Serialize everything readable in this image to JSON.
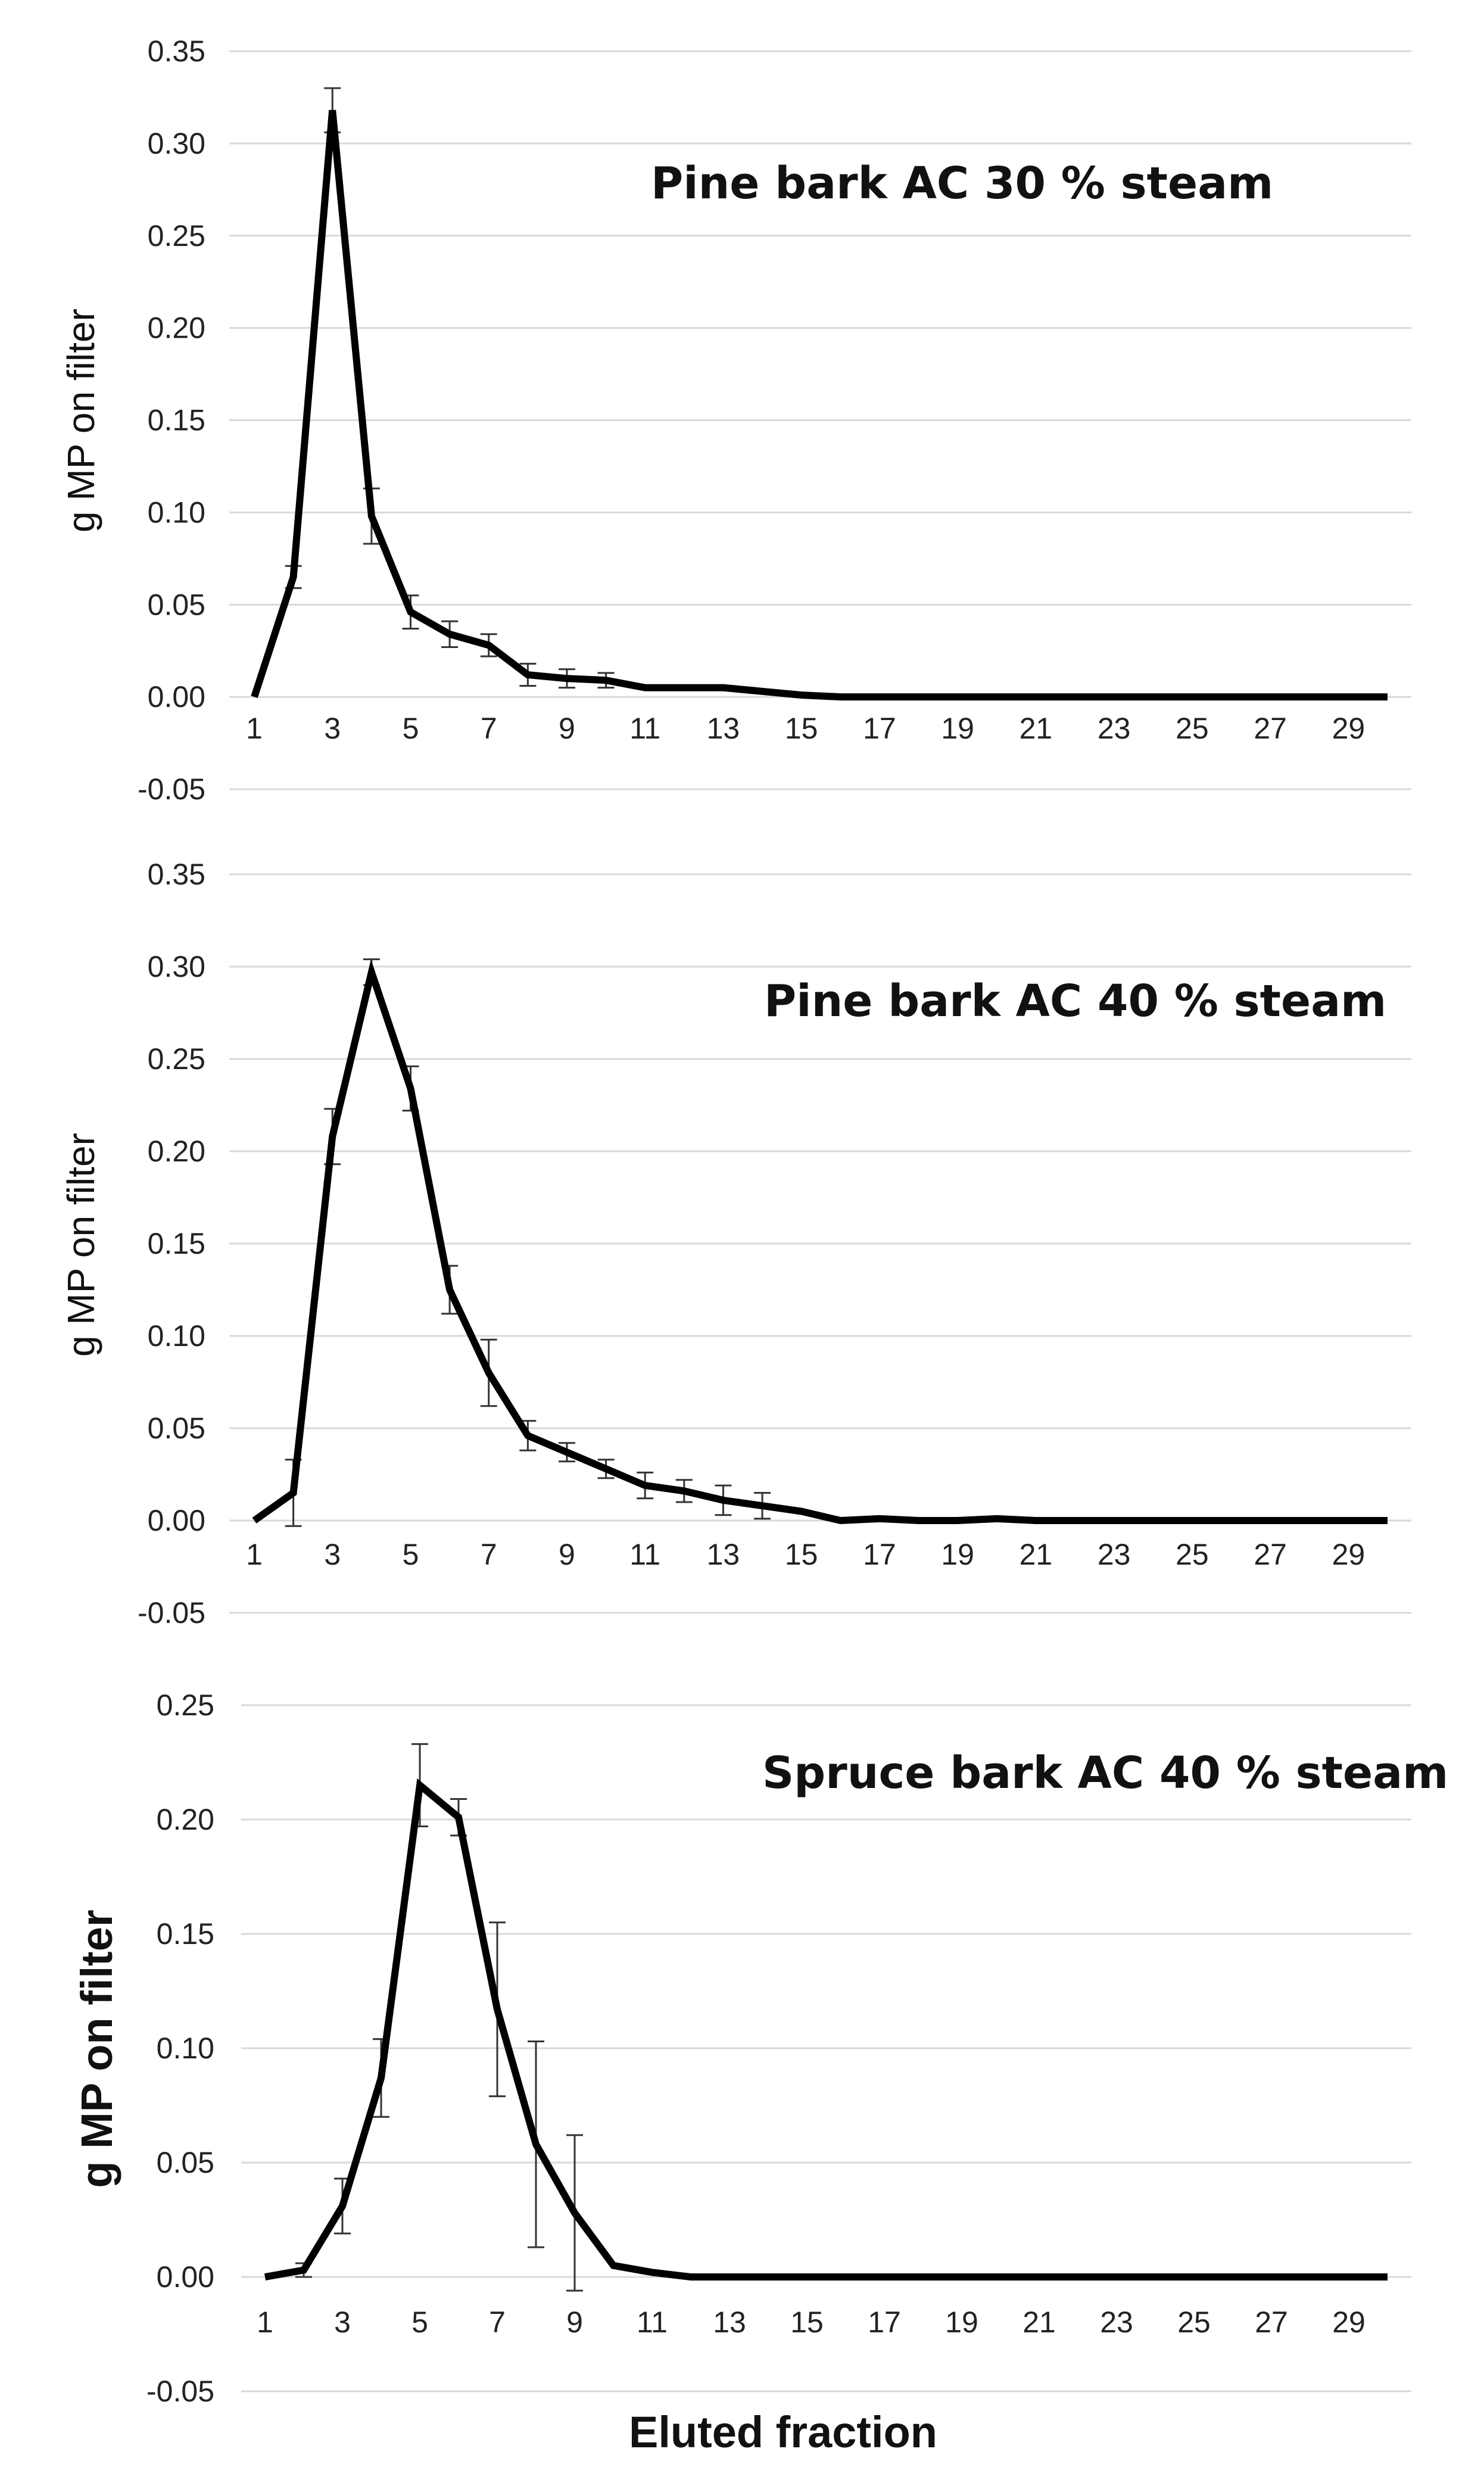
{
  "chart_data": [
    {
      "type": "line",
      "title": "Pine bark AC 30 % steam",
      "ylabel": "g MP on filter",
      "xlabel": "",
      "x": [
        1,
        2,
        3,
        4,
        5,
        6,
        7,
        8,
        9,
        10,
        11,
        12,
        13,
        14,
        15,
        16,
        17,
        18,
        19,
        20,
        21,
        22,
        23,
        24,
        25,
        26,
        27,
        28,
        29,
        30
      ],
      "values": [
        0.0,
        0.065,
        0.318,
        0.098,
        0.046,
        0.034,
        0.028,
        0.012,
        0.01,
        0.009,
        0.005,
        0.005,
        0.005,
        0.003,
        0.001,
        0.0,
        0.0,
        0.0,
        0.0,
        0.0,
        0.0,
        0.0,
        0.0,
        0.0,
        0.0,
        0.0,
        0.0,
        0.0,
        0.0,
        0.0
      ],
      "errors": [
        0,
        0.006,
        0.012,
        0.015,
        0.009,
        0.007,
        0.006,
        0.006,
        0.005,
        0.004,
        0,
        0,
        0,
        0,
        0,
        0,
        0,
        0,
        0,
        0,
        0,
        0,
        0,
        0,
        0,
        0,
        0,
        0,
        0,
        0
      ],
      "x_tick_labels": [
        "1",
        "3",
        "5",
        "7",
        "9",
        "11",
        "13",
        "15",
        "17",
        "19",
        "21",
        "23",
        "25",
        "27",
        "29"
      ],
      "y_tick_labels": [
        "-0.05",
        "0.00",
        "0.05",
        "0.10",
        "0.15",
        "0.20",
        "0.25",
        "0.30",
        "0.35"
      ],
      "ylim": [
        -0.05,
        0.35
      ],
      "grid": true
    },
    {
      "type": "line",
      "title": "Pine bark AC 40 % steam",
      "ylabel": "g MP on filter",
      "xlabel": "",
      "x": [
        1,
        2,
        3,
        4,
        5,
        6,
        7,
        8,
        9,
        10,
        11,
        12,
        13,
        14,
        15,
        16,
        17,
        18,
        19,
        20,
        21,
        22,
        23,
        24,
        25,
        26,
        27,
        28,
        29,
        30
      ],
      "values": [
        0.0,
        0.015,
        0.208,
        0.297,
        0.234,
        0.125,
        0.08,
        0.046,
        0.037,
        0.028,
        0.019,
        0.016,
        0.011,
        0.008,
        0.005,
        0.0,
        0.001,
        0.0,
        0.0,
        0.001,
        0.0,
        0.0,
        0.0,
        0.0,
        0.0,
        0.0,
        0.0,
        0.0,
        0.0,
        0.0
      ],
      "errors": [
        0,
        0.018,
        0.015,
        0.007,
        0.012,
        0.013,
        0.018,
        0.008,
        0.005,
        0.005,
        0.007,
        0.006,
        0.008,
        0.007,
        0,
        0,
        0,
        0,
        0,
        0,
        0,
        0,
        0,
        0,
        0,
        0,
        0,
        0,
        0,
        0
      ],
      "x_tick_labels": [
        "1",
        "3",
        "5",
        "7",
        "9",
        "11",
        "13",
        "15",
        "17",
        "19",
        "21",
        "23",
        "25",
        "27",
        "29"
      ],
      "y_tick_labels": [
        "-0.05",
        "0.00",
        "0.05",
        "0.10",
        "0.15",
        "0.20",
        "0.25",
        "0.30",
        "0.35"
      ],
      "ylim": [
        -0.05,
        0.35
      ],
      "grid": true
    },
    {
      "type": "line",
      "title": "Spruce bark AC 40 % steam",
      "ylabel": "g MP on filter",
      "xlabel": "Eluted fraction",
      "x": [
        1,
        2,
        3,
        4,
        5,
        6,
        7,
        8,
        9,
        10,
        11,
        12,
        13,
        14,
        15,
        16,
        17,
        18,
        19,
        20,
        21,
        22,
        23,
        24,
        25,
        26,
        27,
        28,
        29,
        30
      ],
      "values": [
        0.0,
        0.003,
        0.031,
        0.087,
        0.215,
        0.201,
        0.117,
        0.058,
        0.028,
        0.005,
        0.002,
        0.0,
        0.0,
        0.0,
        0.0,
        0.0,
        0.0,
        0.0,
        0.0,
        0.0,
        0.0,
        0.0,
        0.0,
        0.0,
        0.0,
        0.0,
        0.0,
        0.0,
        0.0,
        0.0
      ],
      "errors": [
        0,
        0.003,
        0.012,
        0.017,
        0.018,
        0.008,
        0.038,
        0.045,
        0.034,
        0,
        0,
        0,
        0,
        0,
        0,
        0,
        0,
        0,
        0,
        0,
        0,
        0,
        0,
        0,
        0,
        0,
        0,
        0,
        0,
        0
      ],
      "x_tick_labels": [
        "1",
        "3",
        "5",
        "7",
        "9",
        "11",
        "13",
        "15",
        "17",
        "19",
        "21",
        "23",
        "25",
        "27",
        "29"
      ],
      "y_tick_labels": [
        "-0.05",
        "0.00",
        "0.05",
        "0.10",
        "0.15",
        "0.20",
        "0.25"
      ],
      "ylim": [
        -0.05,
        0.25
      ],
      "grid": true
    }
  ]
}
